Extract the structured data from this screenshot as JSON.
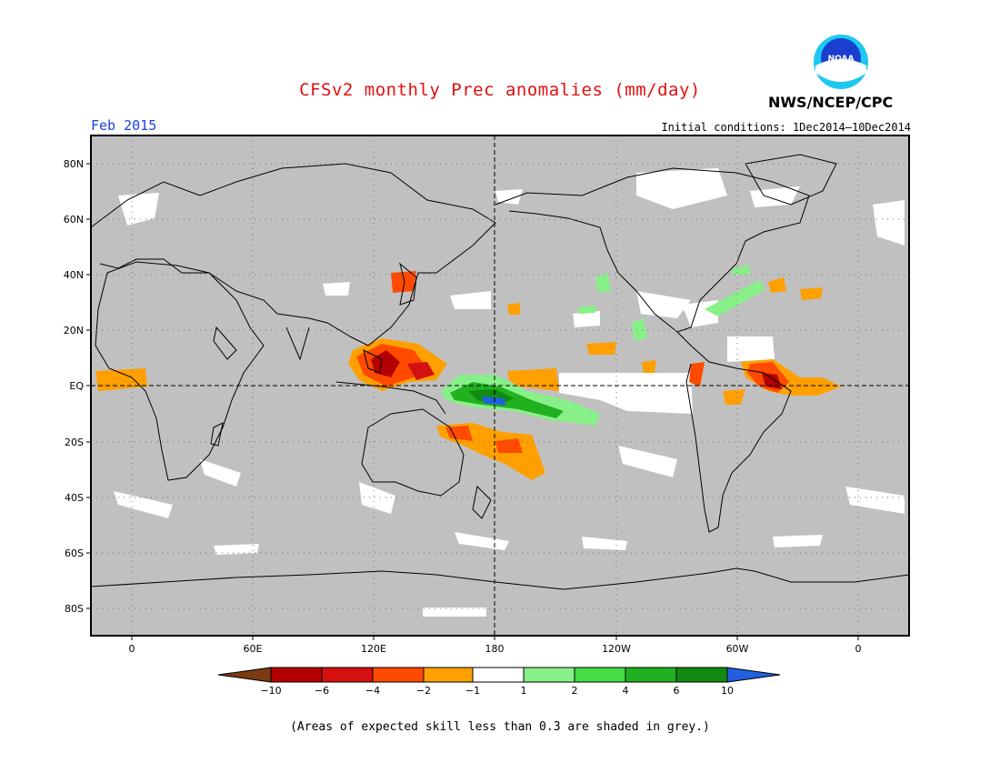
{
  "header": {
    "title": "CFSv2 monthly Prec anomalies (mm/day)",
    "org": "NWS/NCEP/CPC",
    "logo_text": "NOAA",
    "month": "Feb 2015",
    "initial_conditions": "Initial conditions: 1Dec2014—10Dec2014"
  },
  "map": {
    "projection": "cylindrical equidistant",
    "lat_labels": [
      "80N",
      "60N",
      "40N",
      "20N",
      "EQ",
      "20S",
      "40S",
      "60S",
      "80S"
    ],
    "lat_values": [
      80,
      60,
      40,
      20,
      0,
      -20,
      -40,
      -60,
      -80
    ],
    "lon_labels": [
      "0",
      "60E",
      "120E",
      "180",
      "120W",
      "60W",
      "0"
    ],
    "lon_values": [
      0,
      60,
      120,
      180,
      240,
      300,
      360
    ],
    "background_color": "#c0c0c0",
    "grid": "dotted"
  },
  "colorbar": {
    "labels": [
      "−10",
      "−6",
      "−4",
      "−2",
      "−1",
      "1",
      "2",
      "4",
      "6",
      "10"
    ],
    "colors": [
      "#7a3a12",
      "#b40000",
      "#d41010",
      "#ff4a00",
      "#ffa000",
      "#ffffff",
      "#88f088",
      "#44dd44",
      "#20b020",
      "#108a10",
      "#2060e0"
    ]
  },
  "footnote": "(Areas of expected skill less than 0.3 are shaded in grey.)"
}
